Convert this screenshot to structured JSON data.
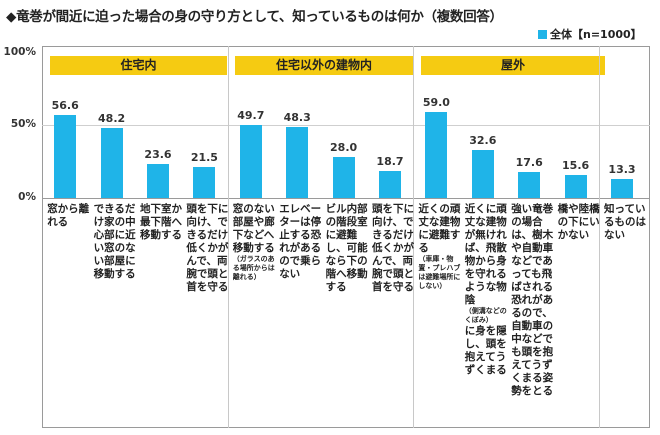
{
  "title": "◆竜巻が間近に迫った場合の身の守り方として、知っているものは何か（複数回答）",
  "legend": {
    "label": "全体【n=1000】",
    "color": "#1fb4e8"
  },
  "chart_data": {
    "type": "bar",
    "ylim": [
      0,
      100
    ],
    "yticks": [
      "0%",
      "50%",
      "100%"
    ],
    "groups": [
      "住宅内",
      "住宅以外の建物内",
      "屋外"
    ],
    "categories": [
      {
        "label": "窓から離れる",
        "note": "",
        "value": 56.6,
        "group": 0
      },
      {
        "label": "できるだけ家の中心部に近い窓のない部屋に移動する",
        "note": "",
        "value": 48.2,
        "group": 0
      },
      {
        "label": "地下室か最下階へ移動する",
        "note": "",
        "value": 23.6,
        "group": 0
      },
      {
        "label": "頭を下に向け、できるだけ低くかがんで、両腕で頭と首を守る",
        "note": "",
        "value": 21.5,
        "group": 0
      },
      {
        "label": "窓のない部屋や廊下などへ移動する",
        "note": "（ガラスのある場所からは離れる）",
        "value": 49.7,
        "group": 1
      },
      {
        "label": "エレベーターは停止する恐れがあるので乗らない",
        "note": "",
        "value": 48.3,
        "group": 1
      },
      {
        "label": "ビル内部の階段室に避難し、可能なら下の階へ移動する",
        "note": "",
        "value": 28.0,
        "group": 1
      },
      {
        "label": "頭を下に向け、できるだけ低くかがんで、両腕で頭と首を守る",
        "note": "",
        "value": 18.7,
        "group": 1
      },
      {
        "label": "近くの頑丈な建物に避難する",
        "note": "（車庫・物置・プレハブは避難場所にしない）",
        "value": 59.0,
        "group": 2
      },
      {
        "label": "近くに頑丈な建物が無ければ、飛散物から身を守れるような物陰",
        "note": "（側溝などのくぼみ）",
        "label2": "に身を隠し、頭を抱えてうずくまる",
        "value": 32.6,
        "group": 2
      },
      {
        "label": "強い竜巻の場合は、樹木や自動車などであっても飛ばされる恐れがあるので、自動車の中などでも頭を抱えてうずくまる姿勢をとる",
        "note": "",
        "value": 17.6,
        "group": 2
      },
      {
        "label": "橋や陸橋の下にいかない",
        "note": "",
        "value": 15.6,
        "group": 2
      },
      {
        "label": "知っているものはない",
        "note": "",
        "value": 13.3,
        "group": -1
      }
    ]
  }
}
